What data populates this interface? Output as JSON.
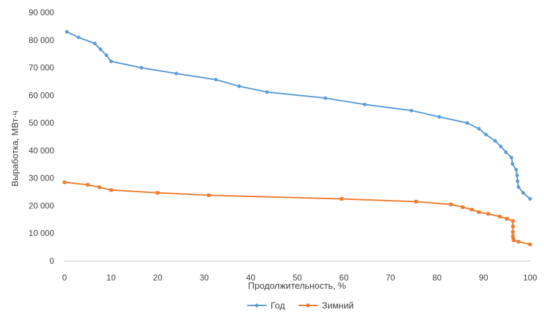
{
  "chart_data": {
    "type": "line",
    "title": "",
    "xlabel": "Продолжительность, %",
    "ylabel": "Выработка, МВт·ч",
    "xlim": [
      0,
      100
    ],
    "ylim": [
      0,
      90000
    ],
    "x_ticks": [
      0,
      10,
      20,
      30,
      40,
      50,
      60,
      70,
      80,
      90,
      100
    ],
    "x_tick_labels": [
      "0",
      "10",
      "20",
      "30",
      "40",
      "50",
      "60",
      "70",
      "80",
      "90",
      "100"
    ],
    "y_ticks": [
      0,
      10000,
      20000,
      30000,
      40000,
      50000,
      60000,
      70000,
      80000,
      90000
    ],
    "y_tick_labels": [
      "0",
      "10 000",
      "20 000",
      "30 000",
      "40 000",
      "50 000",
      "60 000",
      "70 000",
      "80 000",
      "90 000"
    ],
    "grid": false,
    "legend_position": "bottom",
    "series": [
      {
        "name": "Год",
        "color": "#5B9BD5",
        "marker": "circle",
        "x": [
          0.5,
          3,
          6.5,
          7.7,
          9,
          10,
          16.5,
          24,
          32.5,
          37.5,
          43.5,
          56,
          64.5,
          74.5,
          80.5,
          86.5,
          89,
          90.5,
          92.5,
          93.7,
          94.8,
          96,
          96.2,
          97,
          97.2,
          97.3,
          97.5,
          98.5,
          100
        ],
        "y": [
          83000,
          81000,
          78800,
          76700,
          74500,
          72300,
          70000,
          67900,
          65700,
          63300,
          61200,
          59000,
          56700,
          54500,
          52200,
          50000,
          47900,
          45800,
          43500,
          41500,
          39400,
          37500,
          35200,
          33100,
          31000,
          28900,
          26800,
          24700,
          22500
        ]
      },
      {
        "name": "Зимний",
        "color": "#ED7D31",
        "marker": "square",
        "x": [
          0,
          5,
          7.5,
          10,
          20,
          31,
          59.5,
          75.5,
          83,
          85.5,
          87.5,
          89,
          91,
          93.5,
          95,
          96.3,
          96.3,
          96.3,
          96.3,
          96.4,
          96.5,
          97.5,
          100
        ],
        "y": [
          28500,
          27600,
          26700,
          25700,
          24700,
          23800,
          22500,
          21500,
          20500,
          19500,
          18600,
          17700,
          17100,
          16100,
          15300,
          14500,
          12500,
          10500,
          9000,
          8000,
          7500,
          7000,
          6000
        ]
      }
    ]
  }
}
